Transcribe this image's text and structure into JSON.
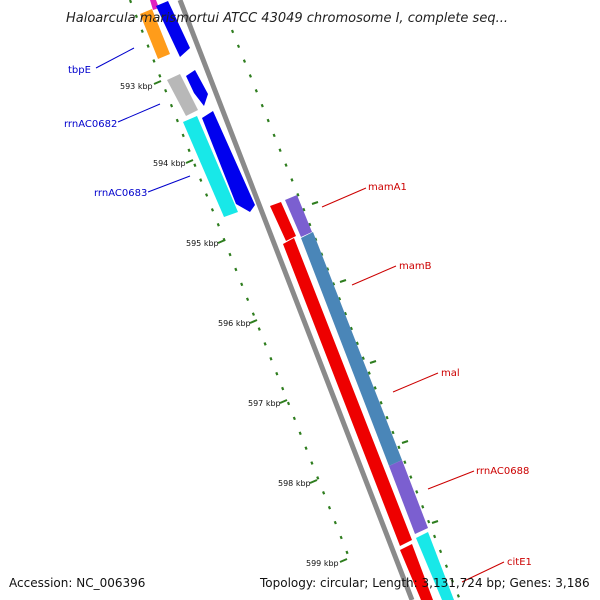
{
  "title": "Haloarcula marismortui ATCC 43049 chromosome I, complete seq...",
  "footer": {
    "accession": "Accession: NC_006396",
    "info": "Topology: circular; Length: 3,131,724 bp; Genes: 3,186"
  },
  "colors": {
    "backbone": "#8a8a8a",
    "tick": "#2e7d1e",
    "label_blue": "#0000cc",
    "label_red": "#cc0000",
    "orange": "#ff9c1a",
    "blue": "#0000ee",
    "gray": "#b8b8b8",
    "cyan": "#18e8e8",
    "red": "#ee0000",
    "purple": "#7b5fd0",
    "steelblue": "#4a86b8",
    "magenta": "#e020c0"
  },
  "tick_labels": [
    "593 kbp",
    "594 kbp",
    "595 kbp",
    "596 kbp",
    "597 kbp",
    "598 kbp",
    "599 kbp"
  ],
  "gene_labels_left": [
    "tbpE",
    "rrnAC0682",
    "rrnAC0683"
  ],
  "gene_labels_right": [
    "mamA1",
    "mamB",
    "mal",
    "rrnAC0688",
    "citE1"
  ]
}
